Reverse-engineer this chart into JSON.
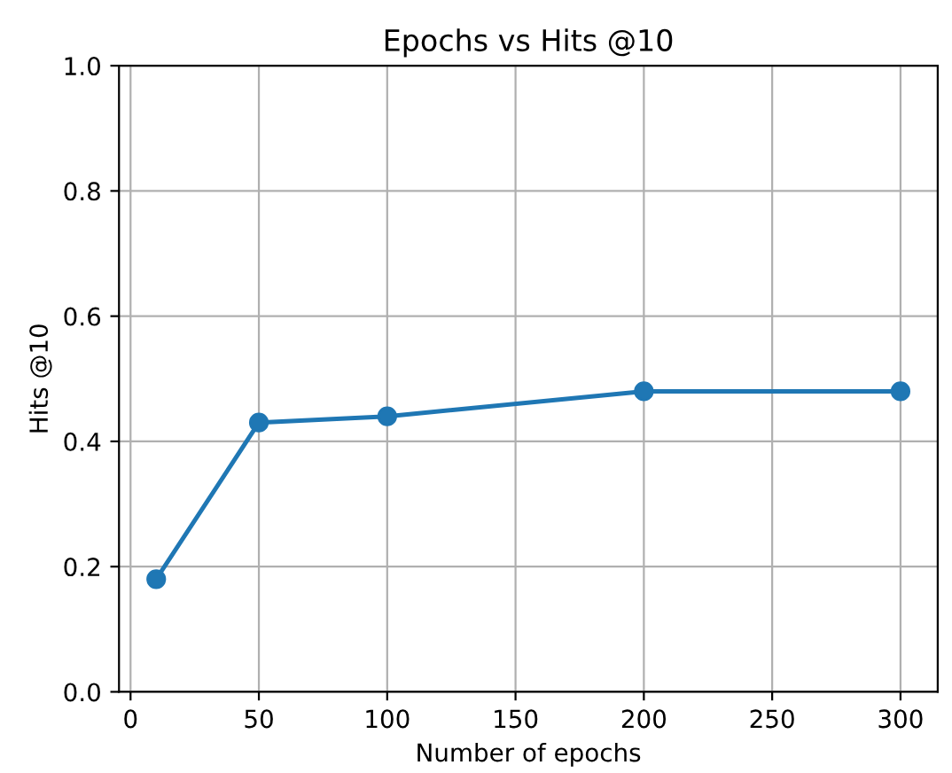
{
  "chart_data": {
    "type": "line",
    "title": "Epochs vs Hits @10",
    "xlabel": "Number of epochs",
    "ylabel": "Hits @10",
    "x": [
      10,
      50,
      100,
      200,
      300
    ],
    "series": [
      {
        "color": "#1f77b4",
        "values": [
          0.18,
          0.43,
          0.44,
          0.48,
          0.48
        ]
      }
    ],
    "xlim": [
      -4.5,
      314.5
    ],
    "xticks": [
      0,
      50,
      100,
      150,
      200,
      250,
      300
    ],
    "ylim": [
      0,
      1
    ],
    "yticks": [
      {
        "value": 0,
        "label": "0.0"
      },
      0.2,
      0.4,
      0.6,
      0.8,
      {
        "value": 1,
        "label": "1.0"
      }
    ],
    "grid": true,
    "marker": "circle",
    "line_style": "solid"
  }
}
